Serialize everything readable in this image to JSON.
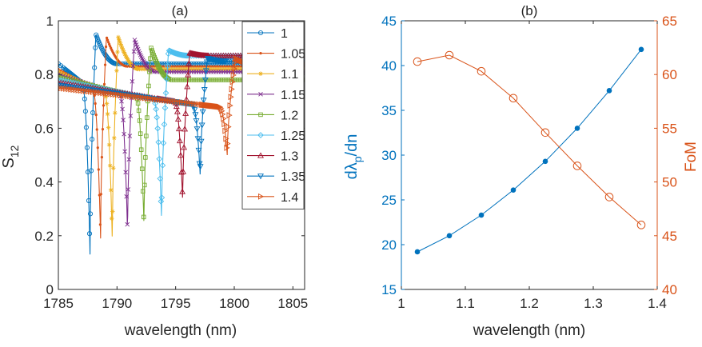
{
  "chart_data": [
    {
      "type": "line",
      "panel_label": "(a)",
      "xlabel": "wavelength (nm)",
      "ylabel_main": "S",
      "ylabel_sub": "12",
      "xlim": [
        1785,
        1806
      ],
      "ylim": [
        0,
        1
      ],
      "xticks": [
        1785,
        1790,
        1795,
        1800,
        1805
      ],
      "xtick_labels": [
        "1785",
        "1790",
        "1795",
        "1800",
        "1805"
      ],
      "yticks": [
        0,
        0.2,
        0.4,
        0.6,
        0.8,
        1
      ],
      "ytick_labels": [
        "0",
        "0.2",
        "0.4",
        "0.6",
        "0.8",
        "1"
      ],
      "legend_position": "top-right",
      "series": [
        {
          "name": "1",
          "label": "1",
          "color": "#0072BD",
          "marker": "circle",
          "left": 0.84,
          "dip_x": 1787.7,
          "dip_y": 0.13,
          "peak_x": 1788.2,
          "peak_y": 0.95,
          "right": 0.84
        },
        {
          "name": "1.05",
          "label": "1.05",
          "color": "#D95319",
          "marker": "dot",
          "left": 0.82,
          "dip_x": 1788.6,
          "dip_y": 0.19,
          "peak_x": 1789.1,
          "peak_y": 0.94,
          "right": 0.83
        },
        {
          "name": "1.1",
          "label": "1.1",
          "color": "#EDB120",
          "marker": "star",
          "left": 0.81,
          "dip_x": 1789.6,
          "dip_y": 0.18,
          "peak_x": 1790.1,
          "peak_y": 0.94,
          "right": 0.82
        },
        {
          "name": "1.15",
          "label": "1.15",
          "color": "#7E2F8E",
          "marker": "x",
          "left": 0.8,
          "dip_x": 1790.9,
          "dip_y": 0.21,
          "peak_x": 1791.5,
          "peak_y": 0.93,
          "right": 0.81
        },
        {
          "name": "1.2",
          "label": "1.2",
          "color": "#77AC30",
          "marker": "square",
          "left": 0.79,
          "dip_x": 1792.3,
          "dip_y": 0.24,
          "peak_x": 1792.9,
          "peak_y": 0.9,
          "right": 0.78
        },
        {
          "name": "1.25",
          "label": "1.25",
          "color": "#4DBEEE",
          "marker": "diamond",
          "left": 0.78,
          "dip_x": 1793.8,
          "dip_y": 0.26,
          "peak_x": 1794.4,
          "peak_y": 0.89,
          "right": 0.87
        },
        {
          "name": "1.3",
          "label": "1.3",
          "color": "#A2142F",
          "marker": "triangle-up",
          "left": 0.77,
          "dip_x": 1795.6,
          "dip_y": 0.33,
          "peak_x": 1796.2,
          "peak_y": 0.88,
          "right": 0.87
        },
        {
          "name": "1.35",
          "label": "1.35",
          "color": "#0072BD",
          "marker": "triangle-down",
          "left": 0.76,
          "dip_x": 1797.1,
          "dip_y": 0.42,
          "peak_x": 1797.7,
          "peak_y": 0.86,
          "right": 0.85
        },
        {
          "name": "1.4",
          "label": "1.4",
          "color": "#D95319",
          "marker": "triangle-right",
          "left": 0.75,
          "dip_x": 1799.4,
          "dip_y": 0.5,
          "peak_x": 1800.1,
          "peak_y": 0.86,
          "right": 0.84
        }
      ]
    },
    {
      "type": "line",
      "panel_label": "(b)",
      "xlabel": "wavelength (nm)",
      "ylabel_left": "dλ",
      "ylabel_left_sub": "p",
      "ylabel_left_tail": "/dn",
      "ylabel_right": "FoM",
      "xlim": [
        1,
        1.4
      ],
      "ylim_left": [
        15,
        45
      ],
      "ylim_right": [
        40,
        65
      ],
      "xticks": [
        1,
        1.1,
        1.2,
        1.3,
        1.4
      ],
      "xtick_labels": [
        "1",
        "1.1",
        "1.2",
        "1.3",
        "1.4"
      ],
      "yticks_left": [
        15,
        20,
        25,
        30,
        35,
        40,
        45
      ],
      "ytick_labels_left": [
        "15",
        "20",
        "25",
        "30",
        "35",
        "40",
        "45"
      ],
      "yticks_right": [
        40,
        45,
        50,
        55,
        60,
        65
      ],
      "ytick_labels_right": [
        "40",
        "45",
        "50",
        "55",
        "60",
        "65"
      ],
      "left_color": "#0072BD",
      "right_color": "#D95319",
      "x": [
        1.025,
        1.075,
        1.125,
        1.175,
        1.225,
        1.275,
        1.325,
        1.375
      ],
      "series": [
        {
          "name": "dλp/dn",
          "axis": "left",
          "color": "#0072BD",
          "marker": "filled-circle",
          "values": [
            19.2,
            21.0,
            23.3,
            26.1,
            29.3,
            33.0,
            37.2,
            41.8
          ]
        },
        {
          "name": "FoM",
          "axis": "right",
          "color": "#D95319",
          "marker": "open-circle",
          "values": [
            61.2,
            61.8,
            60.3,
            57.8,
            54.6,
            51.5,
            48.6,
            46.0
          ]
        }
      ]
    }
  ]
}
